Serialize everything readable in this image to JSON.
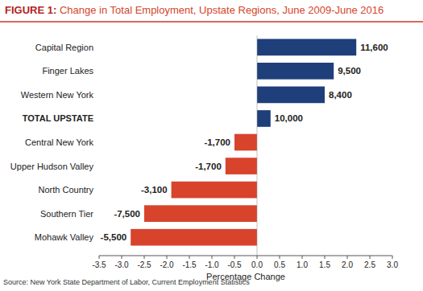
{
  "chart_data": {
    "type": "bar",
    "orientation": "horizontal",
    "title": "FIGURE 1: Change in Total Employment, Upstate Regions, June 2009-June 2016",
    "xlabel": "Percentage Change",
    "source": "Source: New York State Department of Labor, Current Employment Statistics",
    "categories": [
      "Capital Region",
      "Finger Lakes",
      "Western New York",
      "TOTAL UPSTATE",
      "Central New York",
      "Upper Hudson Valley",
      "North Country",
      "Southern Tier",
      "Mohawk Valley"
    ],
    "values": [
      2.2,
      1.7,
      1.5,
      0.3,
      -0.5,
      -0.7,
      -1.9,
      -2.5,
      -2.8
    ],
    "colors": [
      "#1f3f7a",
      "#1f3f7a",
      "#1f3f7a",
      "#1f3f7a",
      "#d8432c",
      "#d8432c",
      "#d8432c",
      "#d8432c",
      "#d8432c"
    ],
    "employment_change": [
      {
        "value": 11600,
        "label": "11,600"
      },
      {
        "value": 9500,
        "label": "9,500"
      },
      {
        "value": 8400,
        "label": "8,400"
      },
      {
        "value": 10000,
        "label": "10,000"
      },
      {
        "value": -1700,
        "label": "-1,700"
      },
      {
        "value": -1700,
        "label": "-1,700"
      },
      {
        "value": -3100,
        "label": "-3,100"
      },
      {
        "value": -7500,
        "label": "-7,500"
      },
      {
        "value": -5500,
        "label": "-5,500"
      }
    ],
    "xlim": [
      -3.5,
      3.0
    ],
    "xticks": [
      -3.5,
      {
        "value": -3,
        "label": "-3.0"
      },
      -2.5,
      {
        "value": -2,
        "label": "-2.0"
      },
      -1.5,
      {
        "value": -1,
        "label": "-1.0"
      },
      -0.5,
      {
        "value": 0,
        "label": "0.0"
      },
      0.5,
      {
        "value": 1,
        "label": "1.0"
      },
      1.5,
      {
        "value": 2,
        "label": "2.0"
      },
      2.5,
      {
        "value": 3,
        "label": "3.0"
      }
    ],
    "grid": false
  }
}
